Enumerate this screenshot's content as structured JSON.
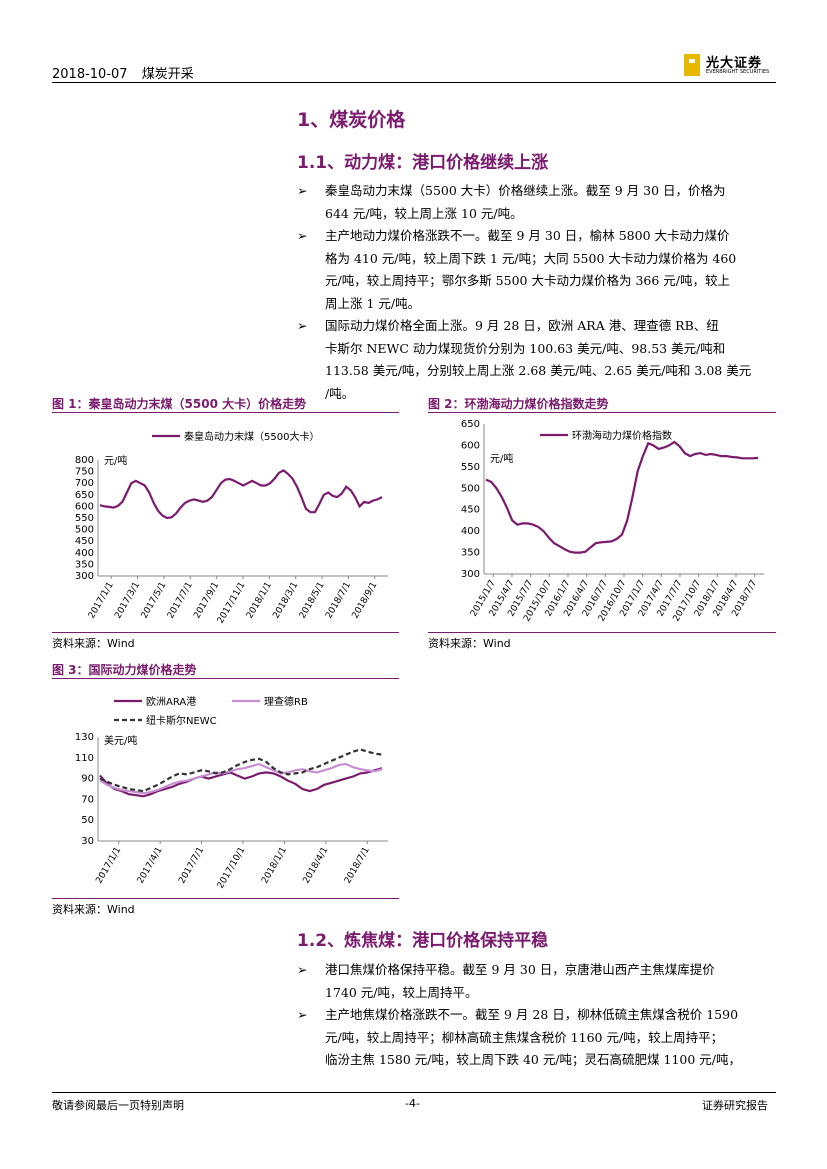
{
  "header": {
    "date": "2018-10-07",
    "category": "煤炭开采",
    "logo_cn": "光大证券",
    "logo_en": "EVERBRIGHT SECURITIES"
  },
  "section1": {
    "title": "1、煤炭价格"
  },
  "section11": {
    "title": "1.1、动力煤：港口价格继续上涨",
    "bullets": [
      [
        "秦皇岛动力末煤（5500 大卡）价格继续上涨。截至 9 月 30 日，价格为",
        "644 元/吨，较上周上涨 10 元/吨。"
      ],
      [
        "主产地动力煤价格涨跌不一。截至 9 月 30 日，榆林 5800 大卡动力煤价",
        "格为 410 元/吨，较上周下跌 1 元/吨；大同 5500 大卡动力煤价格为 460",
        "元/吨，较上周持平；鄂尔多斯 5500 大卡动力煤价格为 366 元/吨，较上",
        "周上涨 1 元/吨。"
      ],
      [
        "国际动力煤价格全面上涨。9 月 28 日，欧洲 ARA 港、理查德 RB、纽",
        "卡斯尔 NEWC 动力煤现货价分别为 100.63 美元/吨、98.53 美元/吨和",
        "113.58 美元/吨，分别较上周上涨 2.68 美元/吨、2.65 美元/吨和 3.08 美元",
        "/吨。"
      ]
    ]
  },
  "fig1": {
    "title": "图 1：秦皇岛动力末煤（5500 大卡）价格走势",
    "source": "资料来源：Wind"
  },
  "fig2": {
    "title": "图 2：环渤海动力煤价格指数走势",
    "source": "资料来源：Wind"
  },
  "fig3": {
    "title": "图 3：国际动力煤价格走势",
    "source": "资料来源：Wind"
  },
  "section12": {
    "title": "1.2、炼焦煤：港口价格保持平稳",
    "bullets": [
      [
        "港口焦煤价格保持平稳。截至 9 月 30 日，京唐港山西产主焦煤库提价",
        "1740 元/吨，较上周持平。"
      ],
      [
        "主产地焦煤价格涨跌不一。截至 9 月 28 日，柳林低硫主焦煤含税价 1590",
        "元/吨，较上周持平；柳林高硫主焦煤含税价 1160 元/吨，较上周持平；",
        "临汾主焦 1580 元/吨，较上周下跌 40 元/吨；灵石高硫肥煤 1100 元/吨，"
      ]
    ]
  },
  "bullet_marker": "➢",
  "footer": {
    "left": "敬请参阅最后一页特别声明",
    "center": "-4-",
    "right": "证券研究报告"
  },
  "colors": {
    "accent": "#7a1b6d",
    "series_light": "#c58fd1",
    "series_dark": "#333333",
    "logo": "#e6b800"
  },
  "chart_data": [
    {
      "type": "line",
      "ylabel": "元/吨",
      "ylim": [
        300,
        800
      ],
      "yticks": [
        800,
        750,
        700,
        650,
        600,
        550,
        500,
        450,
        400,
        350,
        300
      ],
      "xticks": [
        "2017/1/1",
        "2017/3/1",
        "2017/5/1",
        "2017/7/1",
        "2017/9/1",
        "2017/11/1",
        "2018/1/1",
        "2018/3/1",
        "2018/5/1",
        "2018/7/1",
        "2018/9/1"
      ],
      "series": [
        {
          "name": "秦皇岛动力末煤（5500大卡）",
          "color": "#7a1b6d",
          "values": [
            605,
            600,
            598,
            595,
            602,
            620,
            660,
            700,
            710,
            700,
            690,
            660,
            615,
            580,
            560,
            550,
            553,
            570,
            595,
            615,
            625,
            630,
            625,
            620,
            625,
            640,
            670,
            700,
            715,
            718,
            710,
            700,
            690,
            700,
            710,
            700,
            690,
            690,
            700,
            720,
            745,
            755,
            740,
            720,
            685,
            640,
            590,
            575,
            575,
            610,
            650,
            660,
            645,
            640,
            655,
            685,
            670,
            640,
            600,
            620,
            615,
            625,
            630,
            640
          ]
        }
      ]
    },
    {
      "type": "line",
      "ylabel": "元/吨",
      "ylim": [
        300,
        650
      ],
      "yticks": [
        650,
        600,
        550,
        500,
        450,
        400,
        350,
        300
      ],
      "xticks": [
        "2015/1/7",
        "2015/4/7",
        "2015/7/7",
        "2015/10/7",
        "2016/1/7",
        "2016/4/7",
        "2016/7/7",
        "2016/10/7",
        "2017/1/7",
        "2017/4/7",
        "2017/7/7",
        "2017/10/7",
        "2018/1/7",
        "2018/4/7",
        "2018/7/7"
      ],
      "series": [
        {
          "name": "环渤海动力煤价格指数",
          "color": "#7a1b6d",
          "values": [
            520,
            515,
            500,
            480,
            455,
            425,
            415,
            418,
            418,
            415,
            410,
            400,
            385,
            372,
            365,
            358,
            352,
            350,
            350,
            352,
            362,
            372,
            374,
            375,
            376,
            382,
            392,
            425,
            480,
            540,
            575,
            605,
            600,
            592,
            595,
            600,
            608,
            598,
            582,
            575,
            580,
            582,
            578,
            580,
            578,
            575,
            575,
            573,
            572,
            570,
            570,
            570,
            571
          ]
        }
      ]
    },
    {
      "type": "line",
      "ylabel": "美元/吨",
      "ylim": [
        30,
        130
      ],
      "yticks": [
        130,
        110,
        90,
        70,
        50,
        30
      ],
      "xticks": [
        "2017/1/1",
        "2017/4/1",
        "2017/7/1",
        "2017/10/1",
        "2018/1/1",
        "2018/4/1",
        "2018/7/1"
      ],
      "legend": "top",
      "series": [
        {
          "name": "欧洲ARA港",
          "color": "#7a1b6d",
          "values": [
            93,
            85,
            80,
            78,
            75,
            74,
            73,
            75,
            78,
            80,
            82,
            85,
            87,
            90,
            92,
            90,
            92,
            94,
            96,
            93,
            90,
            92,
            95,
            96,
            95,
            92,
            88,
            85,
            80,
            78,
            80,
            84,
            86,
            88,
            90,
            92,
            95,
            96,
            98,
            100
          ]
        },
        {
          "name": "理查德RB",
          "color": "#c58fd1",
          "values": [
            88,
            84,
            81,
            79,
            78,
            77,
            76,
            77,
            79,
            82,
            85,
            87,
            88,
            90,
            92,
            94,
            96,
            95,
            97,
            99,
            100,
            102,
            104,
            101,
            98,
            95,
            96,
            98,
            99,
            97,
            96,
            98,
            100,
            103,
            104,
            101,
            99,
            98,
            97,
            99
          ]
        },
        {
          "name": "纽卡斯尔NEWC",
          "color": "#333333",
          "values": [
            90,
            87,
            84,
            82,
            80,
            79,
            78,
            81,
            84,
            88,
            92,
            95,
            94,
            96,
            98,
            97,
            95,
            96,
            99,
            103,
            106,
            108,
            109,
            106,
            100,
            96,
            94,
            95,
            96,
            99,
            101,
            104,
            107,
            110,
            113,
            116,
            118,
            116,
            114,
            113
          ]
        }
      ]
    }
  ]
}
